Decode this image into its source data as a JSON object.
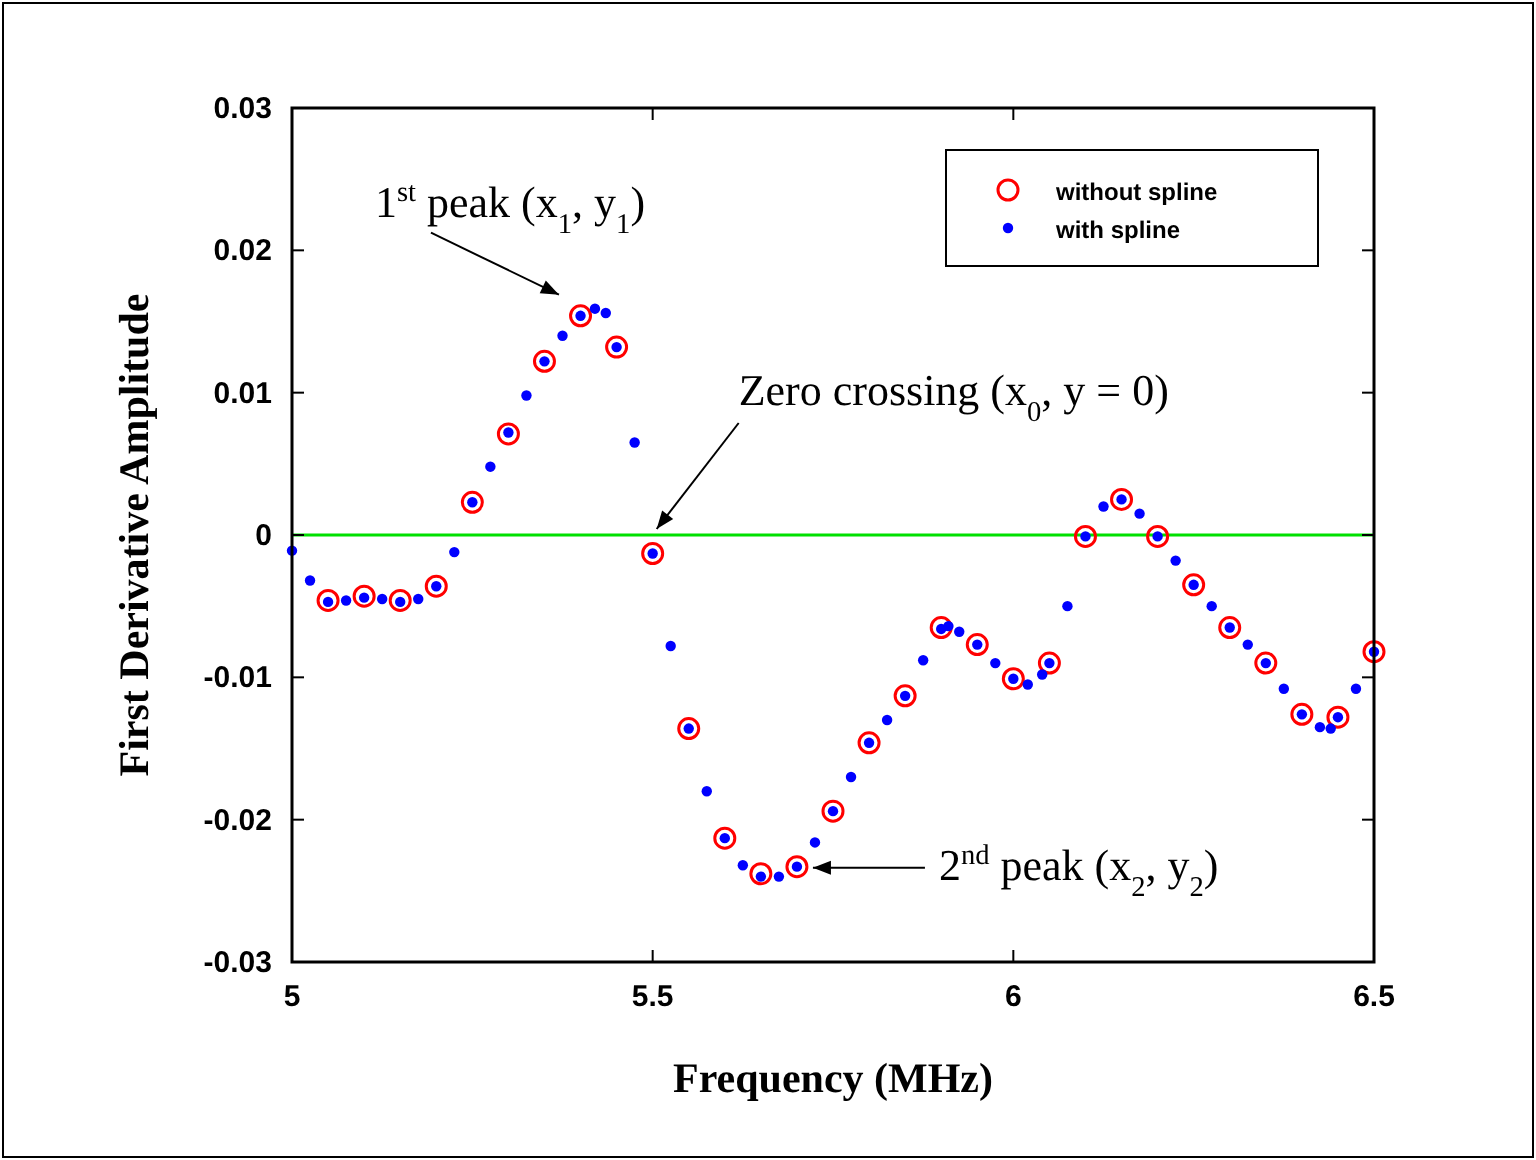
{
  "chart_data": {
    "type": "scatter",
    "xlabel": "Frequency (MHz)",
    "ylabel": "First Derivative Amplitude",
    "xlim": [
      5,
      6.5
    ],
    "xticks": [
      5,
      5.5,
      6,
      6.5
    ],
    "ylim": [
      -0.03,
      0.03
    ],
    "yticks": [
      -0.03,
      -0.02,
      -0.01,
      0,
      0.01,
      0.02,
      0.03
    ],
    "grid": false,
    "legend": "top right",
    "ref_lines": [
      {
        "axis": "y",
        "value": 0,
        "color": "#00e000"
      }
    ],
    "annotations": [
      {
        "text": "1$^{st}$ peak (x$_{1}$, y$_{1}$)",
        "x": 5.42,
        "y": 0.0159
      },
      {
        "text": "Zero crossing (x$_{0}$, y = 0)",
        "x": 5.5,
        "y": 0
      },
      {
        "text": "2$^{nd}$ peak (x$_{2}$, y$_{2}$)",
        "x": 5.7,
        "y": -0.0238
      }
    ],
    "series": [
      {
        "name": "without spline",
        "color": "#ff0000",
        "marker": "circle",
        "x": [
          5.05,
          5.1,
          5.15,
          5.2,
          5.25,
          5.3,
          5.35,
          5.4,
          5.45,
          5.5,
          5.55,
          5.6,
          5.65,
          5.7,
          5.75,
          5.8,
          5.85,
          5.9,
          5.95,
          6,
          6.05,
          6.1,
          6.15,
          6.2,
          6.25,
          6.3,
          6.35,
          6.4,
          6.45,
          6.5
        ],
        "values": [
          -0.0046,
          -0.0043,
          -0.0046,
          -0.0036,
          0.0023,
          0.0071,
          0.0122,
          0.0154,
          0.0132,
          -0.0013,
          -0.0136,
          -0.0213,
          -0.0238,
          -0.0233,
          -0.0194,
          -0.0146,
          -0.0113,
          -0.0065,
          -0.0077,
          -0.0101,
          -0.009,
          -0.0001,
          0.0025,
          -0.0001,
          -0.0035,
          -0.0065,
          -0.009,
          -0.0126,
          -0.0128,
          -0.0082
        ]
      },
      {
        "name": "with spline",
        "color": "#0000ff",
        "marker": "dot",
        "x": [
          5,
          5.025,
          5.05,
          5.075,
          5.1,
          5.125,
          5.15,
          5.175,
          5.2,
          5.225,
          5.25,
          5.275,
          5.3,
          5.325,
          5.35,
          5.375,
          5.4,
          5.42,
          5.435,
          5.45,
          5.475,
          5.5,
          5.525,
          5.55,
          5.575,
          5.6,
          5.625,
          5.65,
          5.675,
          5.7,
          5.725,
          5.75,
          5.775,
          5.8,
          5.825,
          5.85,
          5.875,
          5.9,
          5.91,
          5.925,
          5.95,
          5.975,
          6,
          6.02,
          6.04,
          6.05,
          6.075,
          6.1,
          6.125,
          6.15,
          6.175,
          6.2,
          6.225,
          6.25,
          6.275,
          6.3,
          6.325,
          6.35,
          6.375,
          6.4,
          6.425,
          6.44,
          6.45,
          6.475,
          6.5
        ],
        "values": [
          -0.0011,
          -0.0032,
          -0.0047,
          -0.0046,
          -0.0044,
          -0.0045,
          -0.0047,
          -0.0045,
          -0.0036,
          -0.0012,
          0.0023,
          0.0048,
          0.0072,
          0.0098,
          0.0122,
          0.014,
          0.0154,
          0.0159,
          0.0156,
          0.0132,
          0.0065,
          -0.0013,
          -0.0078,
          -0.0136,
          -0.018,
          -0.0213,
          -0.0232,
          -0.024,
          -0.024,
          -0.0233,
          -0.0216,
          -0.0194,
          -0.017,
          -0.0146,
          -0.013,
          -0.0113,
          -0.0088,
          -0.0066,
          -0.0064,
          -0.0068,
          -0.0077,
          -0.009,
          -0.0101,
          -0.0105,
          -0.0098,
          -0.009,
          -0.005,
          -0.0001,
          0.002,
          0.0025,
          0.0015,
          -0.0001,
          -0.0018,
          -0.0035,
          -0.005,
          -0.0065,
          -0.0077,
          -0.009,
          -0.0108,
          -0.0126,
          -0.0135,
          -0.0136,
          -0.0128,
          -0.0108,
          -0.0082
        ]
      }
    ]
  }
}
